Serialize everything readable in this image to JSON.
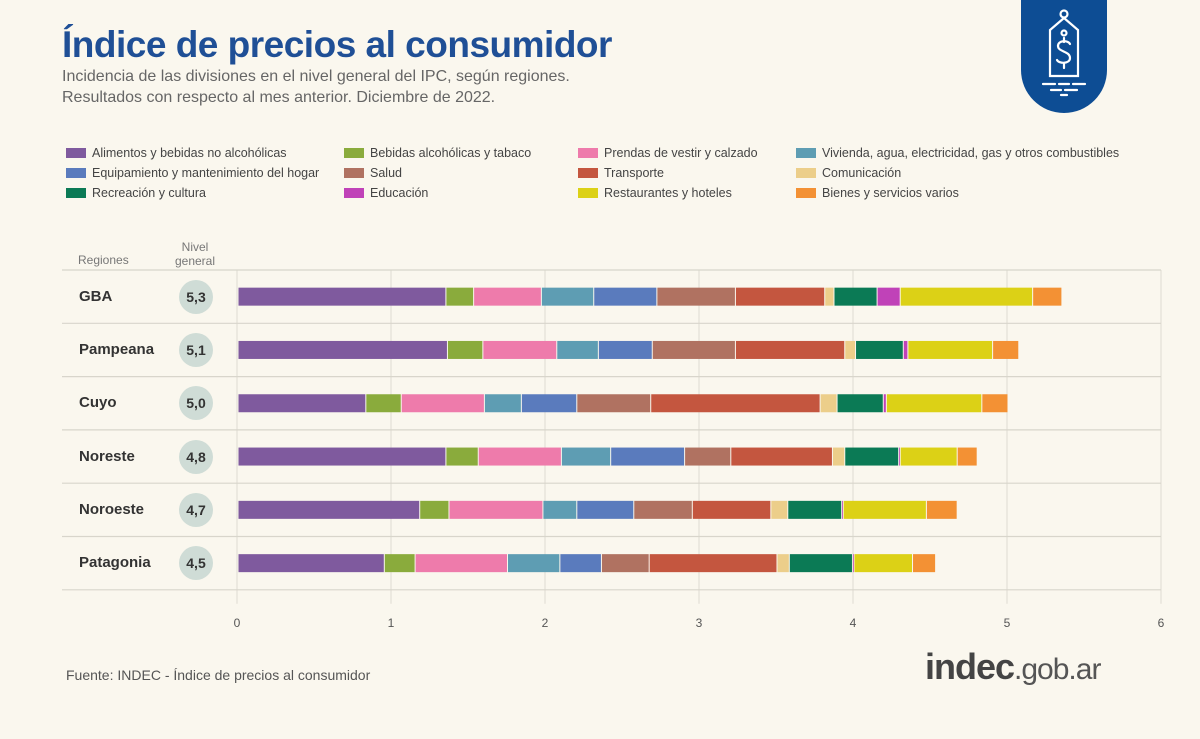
{
  "header": {
    "title": "Índice de precios al consumidor",
    "subtitle_line1": "Incidencia de las divisiones en el nivel general del IPC, según regiones.",
    "subtitle_line2": "Resultados con respecto al mes anterior. Diciembre de 2022."
  },
  "logo": {
    "icon": "price-tag-dollar-icon",
    "color": "#0d4d94"
  },
  "table_headers": {
    "regions": "Regiones",
    "nivel_line1": "Nivel",
    "nivel_line2": "general"
  },
  "footer": {
    "source": "Fuente: INDEC - Índice de precios al consumidor",
    "brand_bold": "indec",
    "brand_rest": ".gob.ar"
  },
  "chart_data": {
    "type": "bar",
    "orientation": "horizontal",
    "stacked": true,
    "categories": [
      "GBA",
      "Pampeana",
      "Cuyo",
      "Noreste",
      "Noroeste",
      "Patagonia"
    ],
    "nivel_general": [
      "5,3",
      "5,1",
      "5,0",
      "4,8",
      "4,7",
      "4,5"
    ],
    "xlim": [
      0,
      6
    ],
    "xticks": [
      "0",
      "1",
      "2",
      "3",
      "4",
      "5",
      "6"
    ],
    "grid": true,
    "legend_position": "top",
    "series": [
      {
        "name": "Alimentos y bebidas no alcohólicas",
        "color": "#7f5a9e",
        "values": [
          1.35,
          1.36,
          0.83,
          1.35,
          1.18,
          0.95
        ]
      },
      {
        "name": "Bebidas alcohólicas y tabaco",
        "color": "#8aab3c",
        "values": [
          0.18,
          0.23,
          0.23,
          0.21,
          0.19,
          0.2
        ]
      },
      {
        "name": "Prendas de vestir y calzado",
        "color": "#ee7bab",
        "values": [
          0.44,
          0.48,
          0.54,
          0.54,
          0.61,
          0.6
        ]
      },
      {
        "name": "Vivienda, agua, electricidad, gas y otros combustibles",
        "color": "#5e9db3",
        "values": [
          0.34,
          0.27,
          0.24,
          0.32,
          0.22,
          0.34
        ]
      },
      {
        "name": "Equipamiento y mantenimiento del hogar",
        "color": "#5a7bbd",
        "values": [
          0.41,
          0.35,
          0.36,
          0.48,
          0.37,
          0.27
        ]
      },
      {
        "name": "Salud",
        "color": "#b07261",
        "values": [
          0.51,
          0.54,
          0.48,
          0.3,
          0.38,
          0.31
        ]
      },
      {
        "name": "Transporte",
        "color": "#c4563f",
        "values": [
          0.58,
          0.71,
          1.1,
          0.66,
          0.51,
          0.83
        ]
      },
      {
        "name": "Comunicación",
        "color": "#ecce8a",
        "values": [
          0.06,
          0.07,
          0.11,
          0.08,
          0.11,
          0.08
        ]
      },
      {
        "name": "Recreación y cultura",
        "color": "#0b7a55",
        "values": [
          0.28,
          0.31,
          0.3,
          0.35,
          0.35,
          0.41
        ]
      },
      {
        "name": "Educación",
        "color": "#c042b8",
        "values": [
          0.15,
          0.03,
          0.02,
          0.01,
          0.01,
          0.01
        ]
      },
      {
        "name": "Restaurantes y hoteles",
        "color": "#dcd116",
        "values": [
          0.86,
          0.55,
          0.62,
          0.37,
          0.54,
          0.38
        ]
      },
      {
        "name": "Bienes y servicios varios",
        "color": "#f39134",
        "values": [
          0.19,
          0.17,
          0.17,
          0.13,
          0.2,
          0.15
        ]
      }
    ]
  }
}
